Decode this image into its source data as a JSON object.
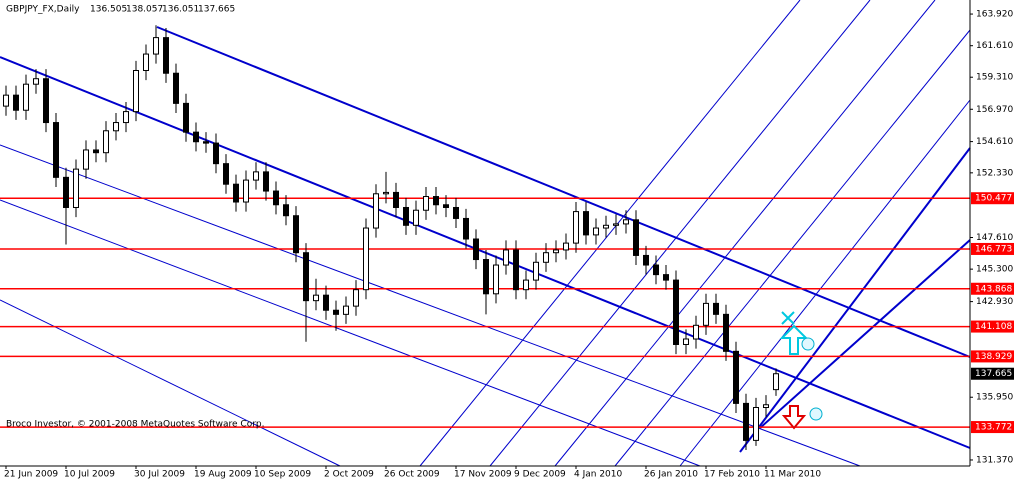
{
  "chart_data": {
    "type": "candlestick",
    "title": "GBPJPY_FX,Daily",
    "copyright": "Broco Investor, © 2001-2008 MetaQuotes Software Corp.",
    "categories": [
      "21 Jun 2009",
      null,
      null,
      null,
      null,
      null,
      "10 Jul 2009",
      null,
      null,
      null,
      null,
      null,
      null,
      "30 Jul 2009",
      null,
      null,
      null,
      null,
      null,
      "19 Aug 2009",
      null,
      null,
      null,
      null,
      null,
      "10 Sep 2009",
      null,
      null,
      null,
      null,
      null,
      null,
      "2 Oct 2009",
      null,
      null,
      null,
      null,
      null,
      "26 Oct 2009",
      null,
      null,
      null,
      null,
      null,
      null,
      "17 Nov 2009",
      null,
      null,
      null,
      null,
      null,
      "9 Dec 2009",
      null,
      null,
      null,
      null,
      null,
      "4 Jan 2010",
      null,
      null,
      null,
      null,
      null,
      null,
      "26 Jan 2010",
      null,
      null,
      null,
      null,
      null,
      "17 Feb 2010",
      null,
      null,
      null,
      null,
      null,
      "11 Mar 2010",
      null
    ],
    "open": [
      157.2,
      158.0,
      156.9,
      158.8,
      159.2,
      156.0,
      152.0,
      149.8,
      152.6,
      154.0,
      153.8,
      155.4,
      156.0,
      156.8,
      159.8,
      161.0,
      162.2,
      159.6,
      157.4,
      155.3,
      154.6,
      154.5,
      153.0,
      151.5,
      150.2,
      151.8,
      152.4,
      151.0,
      150.0,
      149.2,
      146.5,
      143.0,
      143.4,
      142.3,
      142.0,
      142.6,
      143.8,
      148.3,
      150.8,
      150.9,
      149.8,
      148.5,
      149.6,
      150.6,
      150.0,
      149.8,
      149.0,
      147.5,
      146.0,
      143.5,
      145.6,
      146.7,
      143.8,
      144.5,
      145.8,
      146.5,
      146.7,
      147.2,
      149.5,
      147.8,
      148.3,
      148.5,
      148.6,
      148.9,
      146.3,
      145.6,
      144.9,
      144.5,
      139.8,
      140.2,
      141.2,
      142.8,
      142.0,
      139.3,
      135.5,
      132.8,
      135.2,
      136.505
    ],
    "high": [
      158.7,
      158.7,
      159.5,
      159.9,
      159.9,
      156.7,
      152.7,
      153.3,
      154.7,
      154.7,
      156.1,
      156.7,
      157.5,
      160.5,
      161.7,
      163.1,
      162.9,
      160.3,
      158.1,
      156.0,
      155.3,
      155.2,
      153.7,
      152.2,
      152.5,
      153.1,
      153.1,
      151.7,
      150.7,
      149.9,
      147.2,
      144.6,
      144.1,
      143.0,
      143.3,
      144.5,
      149.0,
      151.5,
      152.4,
      151.6,
      150.5,
      150.3,
      151.3,
      151.3,
      150.7,
      150.5,
      149.7,
      148.2,
      146.7,
      146.3,
      147.4,
      147.4,
      145.2,
      146.5,
      147.2,
      147.4,
      147.9,
      150.2,
      150.2,
      149.0,
      149.2,
      149.3,
      149.6,
      149.6,
      147.0,
      146.3,
      145.6,
      145.2,
      140.9,
      141.9,
      143.5,
      143.5,
      142.7,
      140.0,
      136.2,
      135.9,
      136.1,
      138.057
    ],
    "low": [
      156.5,
      156.2,
      156.2,
      158.1,
      155.3,
      151.3,
      147.1,
      149.1,
      151.9,
      153.1,
      153.1,
      154.7,
      155.3,
      156.1,
      159.1,
      160.3,
      158.9,
      156.7,
      154.6,
      153.9,
      153.8,
      152.3,
      150.8,
      149.5,
      149.5,
      151.1,
      150.3,
      149.3,
      148.5,
      145.8,
      140.0,
      142.3,
      141.6,
      140.8,
      141.3,
      141.9,
      143.1,
      147.6,
      150.1,
      149.1,
      147.8,
      147.8,
      148.9,
      149.3,
      149.1,
      148.3,
      146.8,
      145.3,
      142.0,
      142.8,
      144.9,
      143.1,
      143.1,
      143.8,
      145.1,
      145.8,
      146.0,
      146.5,
      147.1,
      147.1,
      147.6,
      147.8,
      147.9,
      145.6,
      144.9,
      144.2,
      143.8,
      139.1,
      139.1,
      139.5,
      140.5,
      141.3,
      138.6,
      134.8,
      132.1,
      132.4,
      134.5,
      136.051
    ],
    "close": [
      158.0,
      156.9,
      158.8,
      159.2,
      156.0,
      152.0,
      149.8,
      152.6,
      154.0,
      153.8,
      155.4,
      156.0,
      156.8,
      159.8,
      161.0,
      162.2,
      159.6,
      157.4,
      155.3,
      154.6,
      154.5,
      153.0,
      151.5,
      150.2,
      151.8,
      152.4,
      151.0,
      150.0,
      149.2,
      146.5,
      143.0,
      143.4,
      142.3,
      142.0,
      142.6,
      143.8,
      148.3,
      150.8,
      150.9,
      149.8,
      148.5,
      149.6,
      150.6,
      150.0,
      149.8,
      149.0,
      147.5,
      146.0,
      143.5,
      145.6,
      146.7,
      143.8,
      144.5,
      145.8,
      146.5,
      146.7,
      147.2,
      149.5,
      147.8,
      148.3,
      148.5,
      148.6,
      148.9,
      146.3,
      145.6,
      144.9,
      144.5,
      139.8,
      140.2,
      141.2,
      142.8,
      142.0,
      139.3,
      135.5,
      132.8,
      135.2,
      135.4,
      137.665
    ],
    "up_color": "#ffffff",
    "down_color": "#000000",
    "levels": [
      150.477,
      146.773,
      143.868,
      141.108,
      138.929,
      133.772
    ],
    "level_color": "#ff0000",
    "ylim": [
      130.93,
      164.8
    ],
    "yticks": [
      {
        "value": 163.92,
        "label": "163.920"
      },
      {
        "value": 161.61,
        "label": "161.610"
      },
      {
        "value": 159.31,
        "label": "159.310"
      },
      {
        "value": 156.97,
        "label": "156.970"
      },
      {
        "value": 154.61,
        "label": "154.610"
      },
      {
        "value": 152.33,
        "label": "152.330"
      },
      {
        "value": 147.61,
        "label": "147.610"
      },
      {
        "value": 145.3,
        "label": "145.300"
      },
      {
        "value": 142.93,
        "label": "142.930"
      },
      {
        "value": 135.95,
        "label": "135.950"
      },
      {
        "value": 131.37,
        "label": "131.370"
      }
    ]
  }
}
